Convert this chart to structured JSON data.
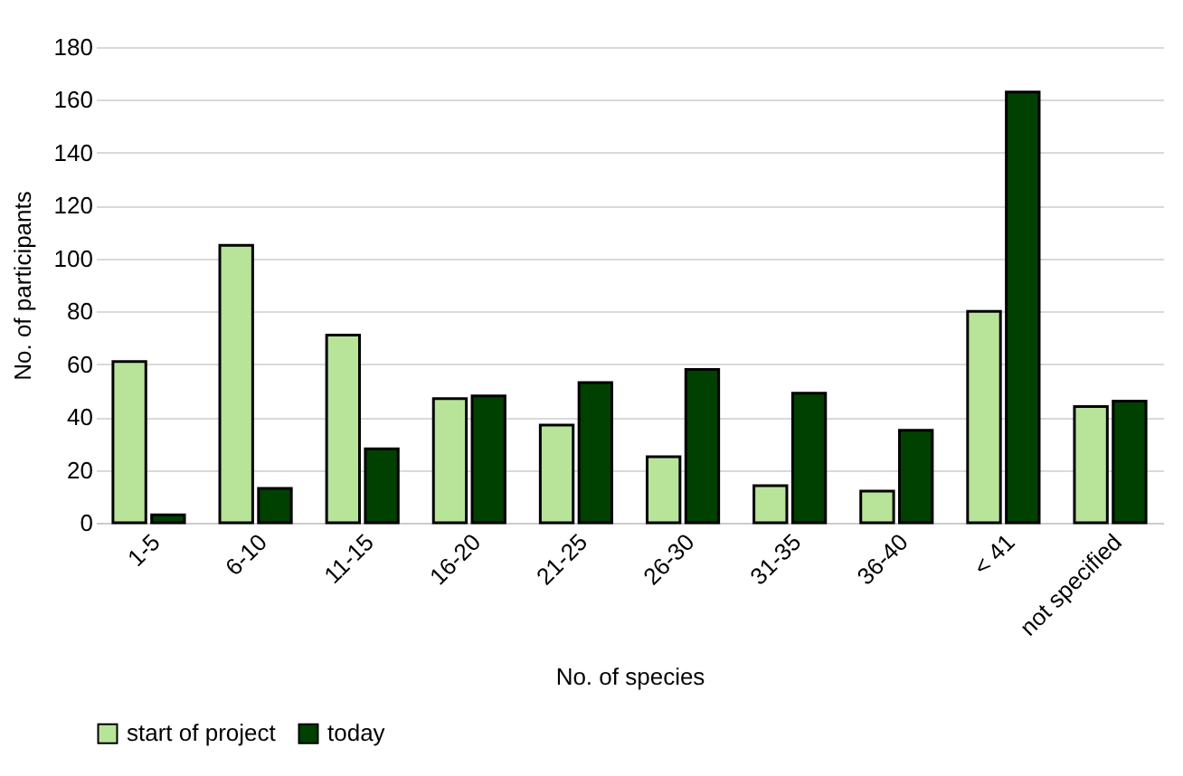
{
  "chart_data": {
    "type": "bar",
    "xlabel": "No. of species",
    "ylabel": "No. of participants",
    "categories": [
      "1-5",
      "6-10",
      "11-15",
      "16-20",
      "21-25",
      "26-30",
      "31-35",
      "36-40",
      "< 41",
      "not specified"
    ],
    "series": [
      {
        "name": "start of project",
        "color": "#b8e49a",
        "values": [
          61,
          105,
          71,
          47,
          37,
          25,
          14,
          12,
          80,
          44
        ]
      },
      {
        "name": "today",
        "color": "#004000",
        "values": [
          3,
          13,
          28,
          48,
          53,
          58,
          49,
          35,
          163,
          46
        ]
      }
    ],
    "ylim": [
      0,
      180
    ],
    "yticks": [
      0,
      20,
      40,
      60,
      80,
      100,
      120,
      140,
      160,
      180
    ],
    "grid": "y",
    "legend": "bottom"
  }
}
